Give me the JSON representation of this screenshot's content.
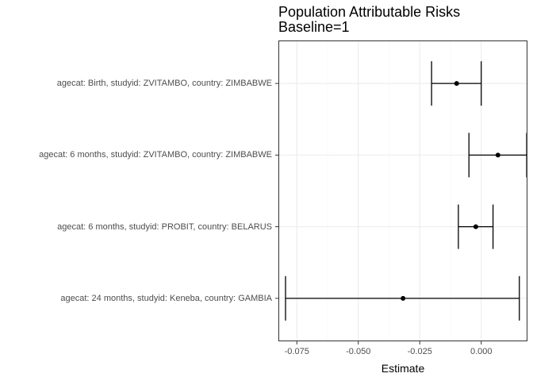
{
  "chart_data": {
    "type": "forest",
    "title": [
      "Population Attributable Risks",
      "Baseline=1"
    ],
    "xlabel": "Estimate",
    "ylabel": "",
    "xlim": [
      -0.0825,
      0.0188
    ],
    "xticks": [
      -0.075,
      -0.05,
      -0.025,
      0.0
    ],
    "xtick_labels": [
      "-0.075",
      "-0.050",
      "-0.025",
      "0.000"
    ],
    "grid": true,
    "categories": [
      "agecat: Birth, studyid: ZVITAMBO, country: ZIMBABWE",
      "agecat: 6 months, studyid: ZVITAMBO, country: ZIMBABWE",
      "agecat: 6 months, studyid: PROBIT, country: BELARUS",
      "agecat: 24 months, studyid: Keneba, country: GAMBIA"
    ],
    "estimates": [
      -0.01,
      0.0068,
      -0.0022,
      -0.0318
    ],
    "lower": [
      -0.0202,
      -0.005,
      -0.0093,
      -0.0796
    ],
    "upper": [
      0.0,
      0.0185,
      0.0048,
      0.0155
    ]
  },
  "colors": {
    "panel_border": "#333333",
    "grid_major": "#ebebeb",
    "grid_minor": "#f5f5f5",
    "mark": "#000000"
  }
}
